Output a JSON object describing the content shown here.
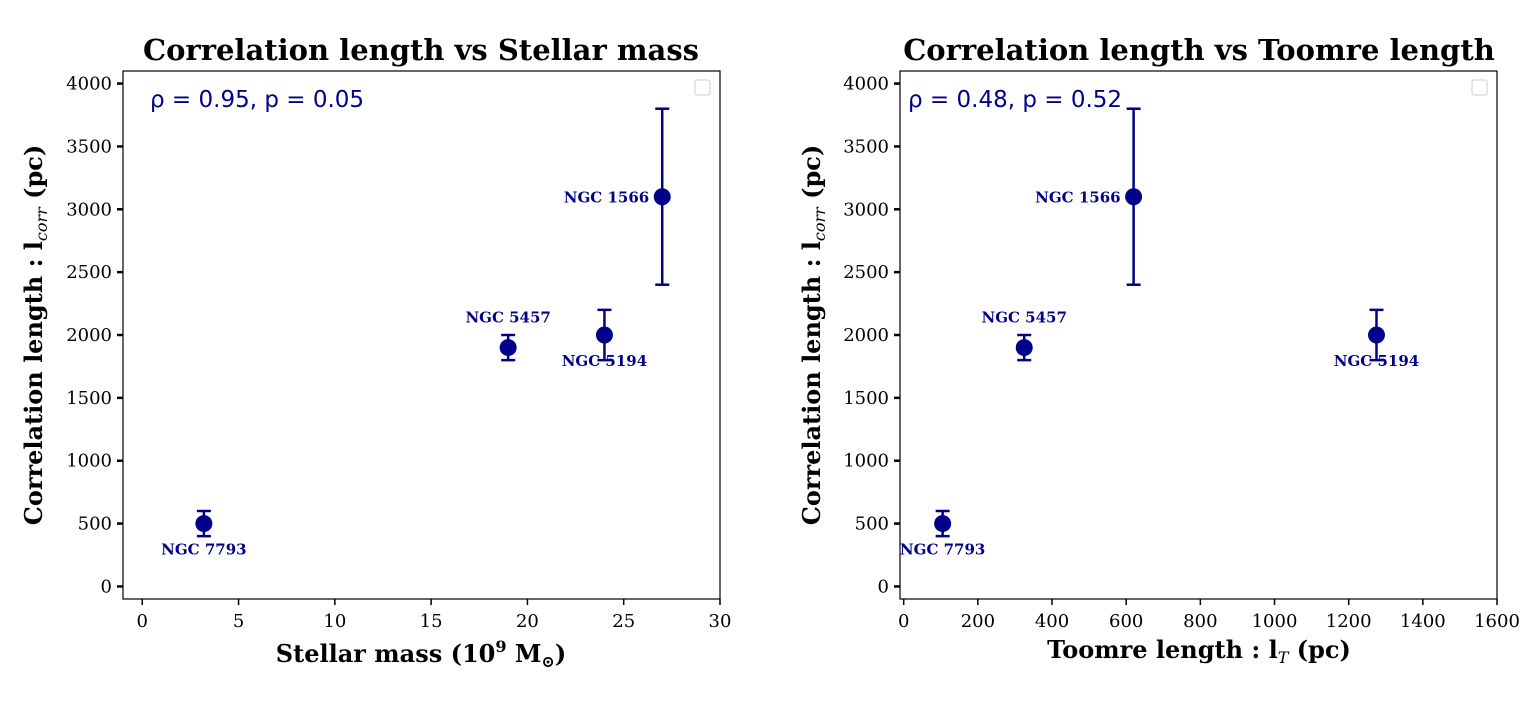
{
  "colors": {
    "marker": "#00008b",
    "axis": "#000000",
    "legend_box": "#cccccc"
  },
  "chart_data": [
    {
      "type": "scatter",
      "title": "Correlation length vs Stellar mass",
      "xlabel": {
        "main": "Stellar mass (10",
        "sup": "9",
        "unit": " M",
        "sub": "⊙",
        "close": ")"
      },
      "ylabel": {
        "main": "Correlation length : l",
        "sub": "corr",
        "unit": " (pc)"
      },
      "annotation": {
        "rho": "ρ = 0.95, ",
        "p": "p = 0.05"
      },
      "xlim": [
        -1,
        30
      ],
      "ylim": [
        -100,
        4100
      ],
      "xticks": [
        0,
        5,
        10,
        15,
        20,
        25,
        30
      ],
      "yticks": [
        0,
        500,
        1000,
        1500,
        2000,
        2500,
        3000,
        3500,
        4000
      ],
      "legend": "top-right",
      "points": [
        {
          "label": "NGC 1566",
          "x": 27,
          "y": 3100,
          "err": 700,
          "label_pos": "left"
        },
        {
          "label": "NGC 5457",
          "x": 19,
          "y": 1900,
          "err": 100,
          "label_pos": "above"
        },
        {
          "label": "NGC 5194",
          "x": 24,
          "y": 2000,
          "err": 200,
          "label_pos": "below"
        },
        {
          "label": "NGC 7793",
          "x": 3.2,
          "y": 500,
          "err": 100,
          "label_pos": "below"
        }
      ]
    },
    {
      "type": "scatter",
      "title": "Correlation length vs Toomre length",
      "xlabel": {
        "main": "Toomre length : l",
        "sub": "T",
        "unit": " (pc)"
      },
      "ylabel": {
        "main": "Correlation length : l",
        "sub": "corr",
        "unit": " (pc)"
      },
      "annotation": {
        "rho": "ρ = 0.48, ",
        "p": "p = 0.52"
      },
      "xlim": [
        -10,
        1600
      ],
      "ylim": [
        -100,
        4100
      ],
      "xticks": [
        0,
        200,
        400,
        600,
        800,
        1000,
        1200,
        1400,
        1600
      ],
      "yticks": [
        0,
        500,
        1000,
        1500,
        2000,
        2500,
        3000,
        3500,
        4000
      ],
      "legend": "top-right",
      "points": [
        {
          "label": "NGC 1566",
          "x": 620,
          "y": 3100,
          "err": 700,
          "label_pos": "left"
        },
        {
          "label": "NGC 5457",
          "x": 325,
          "y": 1900,
          "err": 100,
          "label_pos": "above"
        },
        {
          "label": "NGC 5194",
          "x": 1275,
          "y": 2000,
          "err": 200,
          "label_pos": "below"
        },
        {
          "label": "NGC 7793",
          "x": 105,
          "y": 500,
          "err": 100,
          "label_pos": "below"
        }
      ]
    }
  ]
}
